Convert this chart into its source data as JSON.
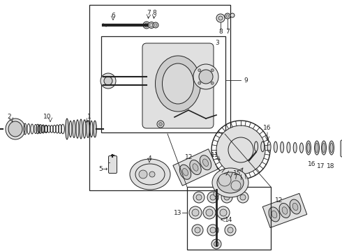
{
  "bg_color": "#ffffff",
  "lc": "#222222",
  "gray1": "#cccccc",
  "gray2": "#e0e0e0",
  "gray3": "#aaaaaa",
  "fs": 6.5,
  "lw": 0.7
}
